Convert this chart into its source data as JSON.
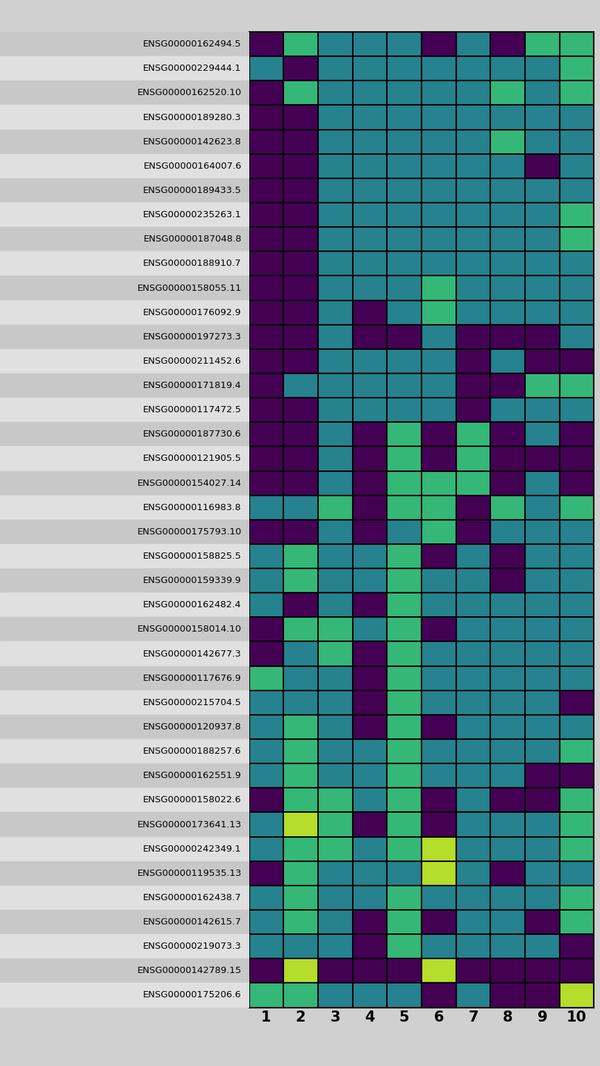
{
  "gene_labels": [
    "ENSG00000162494.5",
    "ENSG00000229444.1",
    "ENSG00000162520.10",
    "ENSG00000189280.3",
    "ENSG00000142623.8",
    "ENSG00000164007.6",
    "ENSG00000189433.5",
    "ENSG00000235263.1",
    "ENSG00000187048.8",
    "ENSG00000188910.7",
    "ENSG00000158055.11",
    "ENSG00000176092.9",
    "ENSG00000197273.3",
    "ENSG00000211452.6",
    "ENSG00000171819.4",
    "ENSG00000117472.5",
    "ENSG00000187730.6",
    "ENSG00000121905.5",
    "ENSG00000154027.14",
    "ENSG00000116983.8",
    "ENSG00000175793.10",
    "ENSG00000158825.5",
    "ENSG00000159339.9",
    "ENSG00000162482.4",
    "ENSG00000158014.10",
    "ENSG00000142677.3",
    "ENSG00000117676.9",
    "ENSG00000215704.5",
    "ENSG00000120937.8",
    "ENSG00000188257.6",
    "ENSG00000162551.9",
    "ENSG00000158022.6",
    "ENSG00000173641.13",
    "ENSG00000242349.1",
    "ENSG00000119535.13",
    "ENSG00000162438.7",
    "ENSG00000142615.7",
    "ENSG00000219073.3",
    "ENSG00000142789.15",
    "ENSG00000175206.6"
  ],
  "heatmap_data": [
    [
      0,
      3,
      2,
      2,
      2,
      0,
      2,
      0,
      3,
      3
    ],
    [
      2,
      0,
      2,
      2,
      2,
      2,
      2,
      2,
      2,
      3
    ],
    [
      0,
      3,
      2,
      2,
      2,
      2,
      2,
      3,
      2,
      3
    ],
    [
      0,
      0,
      2,
      2,
      2,
      2,
      2,
      2,
      2,
      2
    ],
    [
      0,
      0,
      2,
      2,
      2,
      2,
      2,
      3,
      2,
      2
    ],
    [
      0,
      0,
      2,
      2,
      2,
      2,
      2,
      2,
      0,
      2
    ],
    [
      0,
      0,
      2,
      2,
      2,
      2,
      2,
      2,
      2,
      2
    ],
    [
      0,
      0,
      2,
      2,
      2,
      2,
      2,
      2,
      2,
      3
    ],
    [
      0,
      0,
      2,
      2,
      2,
      2,
      2,
      2,
      2,
      3
    ],
    [
      0,
      0,
      2,
      2,
      2,
      2,
      2,
      2,
      2,
      2
    ],
    [
      0,
      0,
      2,
      2,
      2,
      3,
      2,
      2,
      2,
      2
    ],
    [
      0,
      0,
      2,
      0,
      2,
      3,
      2,
      2,
      2,
      2
    ],
    [
      0,
      0,
      2,
      0,
      0,
      2,
      0,
      0,
      0,
      2
    ],
    [
      0,
      0,
      2,
      2,
      2,
      2,
      0,
      2,
      0,
      0
    ],
    [
      0,
      2,
      2,
      2,
      2,
      2,
      0,
      0,
      3,
      3
    ],
    [
      0,
      0,
      2,
      2,
      2,
      2,
      0,
      2,
      2,
      2
    ],
    [
      0,
      0,
      2,
      0,
      3,
      0,
      3,
      0,
      2,
      0
    ],
    [
      0,
      0,
      2,
      0,
      3,
      0,
      3,
      0,
      0,
      0
    ],
    [
      0,
      0,
      2,
      0,
      3,
      3,
      3,
      0,
      2,
      0
    ],
    [
      2,
      2,
      3,
      0,
      3,
      3,
      0,
      3,
      2,
      3
    ],
    [
      0,
      0,
      2,
      0,
      2,
      3,
      0,
      2,
      2,
      2
    ],
    [
      2,
      3,
      2,
      2,
      3,
      0,
      2,
      0,
      2,
      2
    ],
    [
      2,
      3,
      2,
      2,
      3,
      2,
      2,
      0,
      2,
      2
    ],
    [
      2,
      0,
      2,
      0,
      3,
      2,
      2,
      2,
      2,
      2
    ],
    [
      0,
      3,
      3,
      2,
      3,
      0,
      2,
      2,
      2,
      2
    ],
    [
      0,
      2,
      3,
      0,
      3,
      2,
      2,
      2,
      2,
      2
    ],
    [
      3,
      2,
      2,
      0,
      3,
      2,
      2,
      2,
      2,
      2
    ],
    [
      2,
      2,
      2,
      0,
      3,
      2,
      2,
      2,
      2,
      0
    ],
    [
      2,
      3,
      2,
      0,
      3,
      0,
      2,
      2,
      2,
      2
    ],
    [
      2,
      3,
      2,
      2,
      3,
      2,
      2,
      2,
      2,
      3
    ],
    [
      2,
      3,
      2,
      2,
      3,
      2,
      2,
      2,
      0,
      0
    ],
    [
      0,
      3,
      3,
      2,
      3,
      0,
      2,
      0,
      0,
      3
    ],
    [
      2,
      4,
      3,
      0,
      3,
      0,
      2,
      2,
      2,
      3
    ],
    [
      2,
      3,
      3,
      2,
      3,
      4,
      2,
      2,
      2,
      3
    ],
    [
      0,
      3,
      2,
      2,
      2,
      4,
      2,
      0,
      2,
      2
    ],
    [
      2,
      3,
      2,
      2,
      3,
      2,
      2,
      2,
      2,
      3
    ],
    [
      2,
      3,
      2,
      0,
      3,
      0,
      2,
      2,
      0,
      3
    ],
    [
      2,
      2,
      2,
      0,
      3,
      2,
      2,
      2,
      2,
      0
    ],
    [
      0,
      4,
      0,
      0,
      0,
      4,
      0,
      0,
      0,
      0
    ],
    [
      3,
      3,
      2,
      2,
      2,
      0,
      2,
      0,
      0,
      4
    ]
  ],
  "n_topics": 10,
  "row_colors_alt": [
    "#c8c8c8",
    "#e0e0e0"
  ],
  "bg_color": "#d0d0d0",
  "figsize": [
    8.64,
    15.36
  ],
  "dpi": 100,
  "vmin": 0,
  "vmax": 4.5
}
